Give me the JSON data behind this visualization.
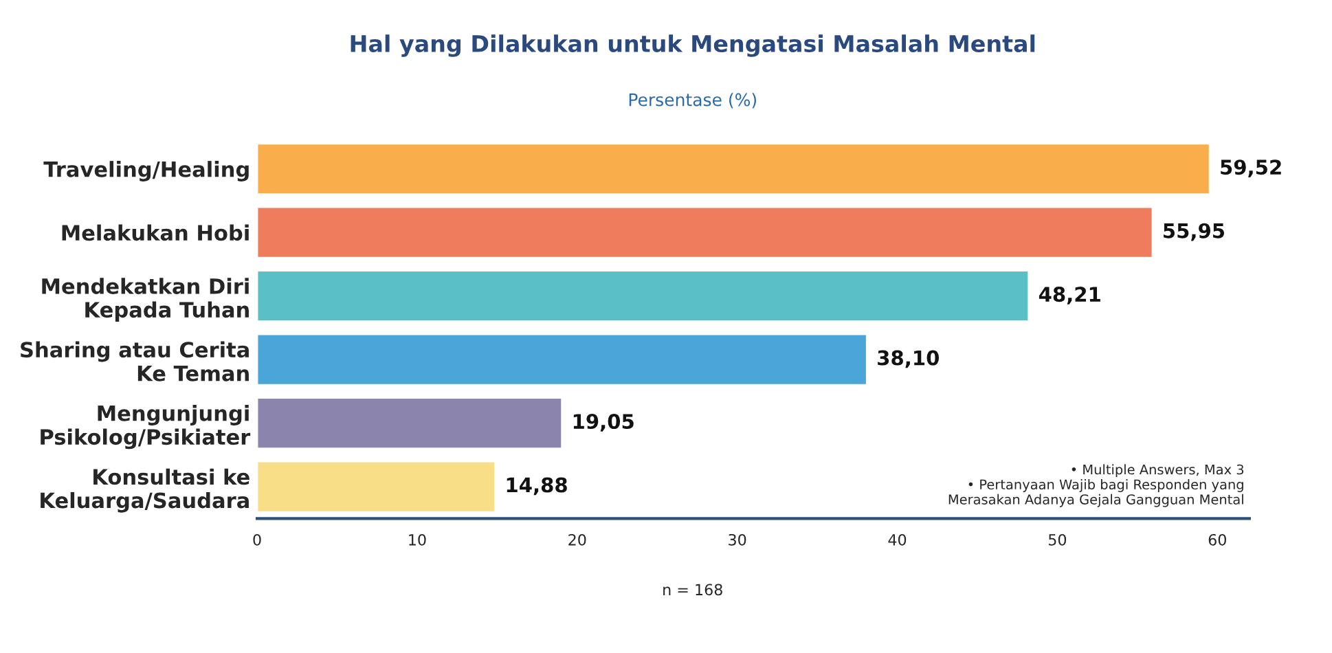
{
  "chart_data": {
    "type": "bar",
    "orientation": "horizontal",
    "title": "Hal yang Dilakukan untuk Mengatasi Masalah Mental",
    "subtitle": "Persentase (%)",
    "categories": [
      "Traveling/Healing",
      "Melakukan Hobi",
      "Mendekatkan Diri\nKepada Tuhan",
      "Sharing atau Cerita\nKe Teman",
      "Mengunjungi\nPsikolog/Psikiater",
      "Konsultasi ke\nKeluarga/Saudara"
    ],
    "values": [
      59.52,
      55.95,
      48.21,
      38.1,
      19.05,
      14.88
    ],
    "value_labels": [
      "59,52",
      "55,95",
      "48,21",
      "38,10",
      "19,05",
      "14,88"
    ],
    "colors": [
      "#f9ae4b",
      "#f07c5e",
      "#5bbfc8",
      "#4aa5d9",
      "#8b85ad",
      "#f7de87"
    ],
    "xlim": [
      0,
      62
    ],
    "xticks": [
      0,
      10,
      20,
      30,
      40,
      50,
      60
    ],
    "grid": false,
    "legend": false,
    "annotations": [
      "• Multiple Answers, Max 3\n• Pertanyaan Wajib bagi Responden yang\n   Merasakan Adanya Gejala Gangguan Mental",
      "n = 168"
    ]
  }
}
